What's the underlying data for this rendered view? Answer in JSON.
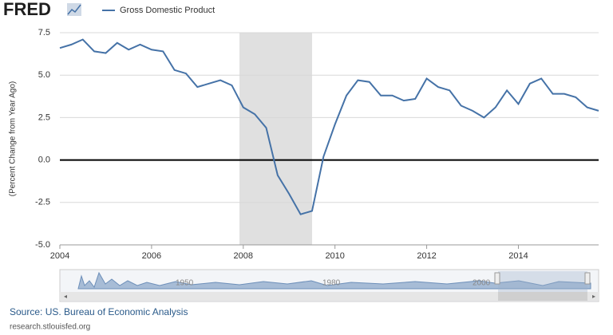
{
  "logo": "FRED",
  "chart_data": {
    "type": "line",
    "ylabel": "(Percent Change from Year Ago)",
    "x": [
      2004,
      2004.25,
      2004.5,
      2004.75,
      2005,
      2005.25,
      2005.5,
      2005.75,
      2006,
      2006.25,
      2006.5,
      2006.75,
      2007,
      2007.25,
      2007.5,
      2007.75,
      2008,
      2008.25,
      2008.5,
      2008.75,
      2009,
      2009.25,
      2009.5,
      2009.75,
      2010,
      2010.25,
      2010.5,
      2010.75,
      2011,
      2011.25,
      2011.5,
      2011.75,
      2012,
      2012.25,
      2012.5,
      2012.75,
      2013,
      2013.25,
      2013.5,
      2013.75,
      2014,
      2014.25,
      2014.5,
      2014.75,
      2015,
      2015.25,
      2015.5,
      2015.75
    ],
    "series": [
      {
        "name": "Gross Domestic Product",
        "color": "#4572a7",
        "values": [
          6.6,
          6.8,
          7.1,
          6.4,
          6.3,
          6.9,
          6.5,
          6.8,
          6.5,
          6.4,
          5.3,
          5.1,
          4.3,
          4.5,
          4.7,
          4.4,
          3.1,
          2.7,
          1.9,
          -0.9,
          -2.0,
          -3.2,
          -3.0,
          0.2,
          2.1,
          3.8,
          4.7,
          4.6,
          3.8,
          3.8,
          3.5,
          3.6,
          4.8,
          4.3,
          4.1,
          3.2,
          2.9,
          2.5,
          3.1,
          4.1,
          3.3,
          4.5,
          4.8,
          3.9,
          3.9,
          3.7,
          3.1,
          2.9
        ]
      }
    ],
    "xlim": [
      2004,
      2015.75
    ],
    "xticks": [
      2004,
      2006,
      2008,
      2010,
      2012,
      2014
    ],
    "ylim": [
      -5,
      7.5
    ],
    "yticks": [
      {
        "value": -5,
        "label": "-5.0"
      },
      {
        "value": -2.5,
        "label": "-2.5"
      },
      {
        "value": 0,
        "label": "0.0"
      },
      {
        "value": 2.5,
        "label": "2.5"
      },
      {
        "value": 5,
        "label": "5.0"
      },
      {
        "value": 7.5,
        "label": "7.5"
      }
    ],
    "grid": true,
    "zero_line": true,
    "recession": [
      2007.917,
      2009.5
    ],
    "recession_color": "#e0e0e0"
  },
  "navigator_labels": [
    "1950",
    "1980",
    "2000"
  ],
  "source": "Source: US. Bureau of Economic Analysis",
  "site": "research.stlouisfed.org"
}
